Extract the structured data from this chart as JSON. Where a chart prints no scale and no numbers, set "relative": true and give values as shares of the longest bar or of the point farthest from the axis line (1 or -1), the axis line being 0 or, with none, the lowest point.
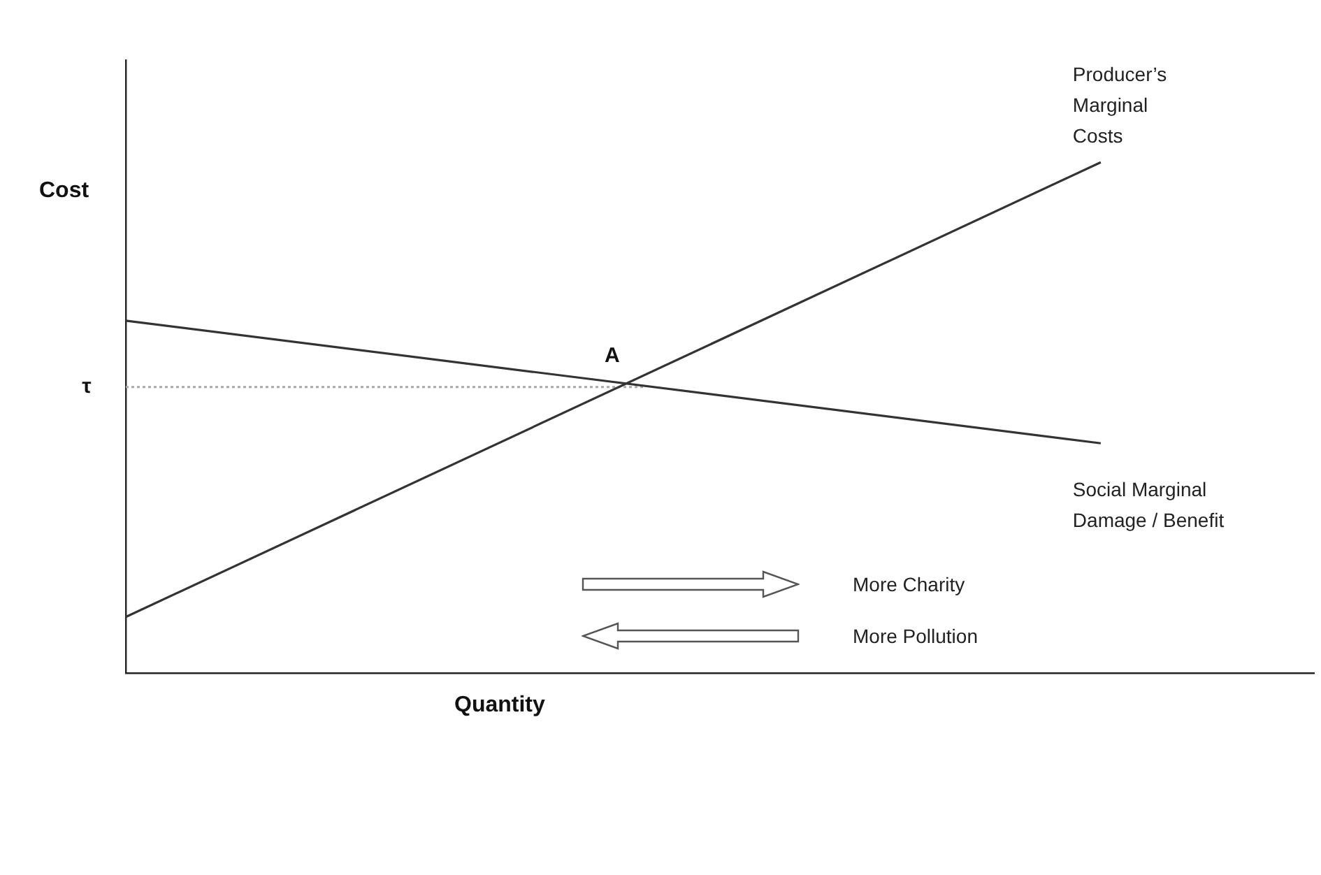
{
  "chart_data": {
    "type": "line",
    "relative": true,
    "ylabel": "Cost",
    "xlabel": "Quantity",
    "marker": "none",
    "legend": false,
    "grid": false,
    "categories": [
      null,
      null,
      null,
      null,
      null,
      null,
      null,
      null,
      null,
      null,
      null,
      null,
      null,
      null,
      null,
      null,
      null,
      null,
      null,
      null,
      null,
      null,
      null,
      null,
      null,
      null,
      null,
      null,
      null,
      null,
      null,
      null,
      null,
      null,
      null,
      null,
      null,
      null,
      null,
      null
    ],
    "series": [
      {
        "name": "Producer’s Marginal Costs",
        "color": "#333333",
        "values": [
          0.11,
          null,
          null,
          null,
          null,
          null,
          null,
          null,
          null,
          null,
          null,
          null,
          null,
          null,
          null,
          null,
          null,
          null,
          null,
          null,
          null,
          null,
          null,
          null,
          null,
          null,
          null,
          null,
          null,
          null,
          null,
          null,
          1.0,
          null,
          null,
          null,
          null,
          null,
          null,
          null
        ]
      },
      {
        "name": "Social Marginal Damage / Benefit",
        "color": "#333333",
        "values": [
          0.69,
          null,
          null,
          null,
          null,
          null,
          null,
          null,
          null,
          null,
          null,
          null,
          null,
          null,
          null,
          null,
          null,
          null,
          null,
          null,
          null,
          null,
          null,
          null,
          null,
          null,
          null,
          null,
          null,
          null,
          null,
          null,
          0.45,
          null,
          null,
          null,
          null,
          null,
          null,
          null
        ]
      },
      {
        "color": "#aaaaaa",
        "values": [
          0.56,
          null,
          null,
          null,
          null,
          null,
          null,
          null,
          null,
          null,
          null,
          null,
          null,
          null,
          null,
          null,
          null,
          0.56,
          null,
          null,
          null,
          null,
          null,
          null,
          null,
          null,
          null,
          null,
          null,
          null,
          null,
          null,
          null,
          null,
          null,
          null,
          null,
          null,
          null,
          null
        ],
        "line_style": "dotted"
      }
    ],
    "annotations": [
      "A",
      "τ",
      "More Charity",
      "More Pollution"
    ]
  }
}
